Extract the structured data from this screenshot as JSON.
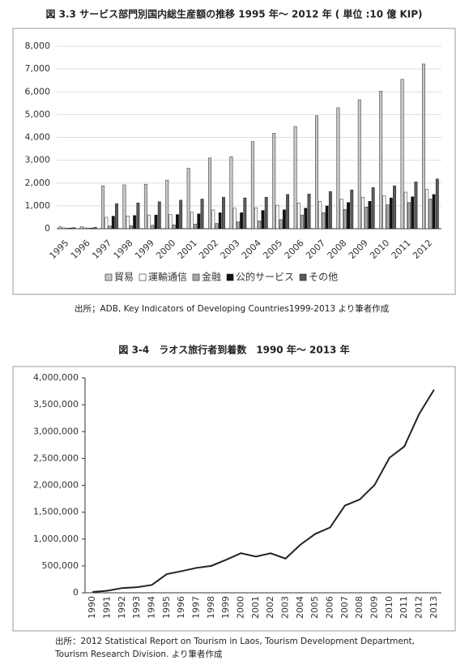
{
  "chart_data": [
    {
      "type": "bar",
      "title": "図 3.3 サービス部門別国内総生産額の推移 1995 年～ 2012 年 ( 単位 :10 億 KIP)",
      "categories": [
        "1995",
        "1996",
        "1997",
        "1998",
        "1999",
        "2000",
        "2001",
        "2002",
        "2003",
        "2004",
        "2005",
        "2006",
        "2007",
        "2008",
        "2009",
        "2010",
        "2011",
        "2012"
      ],
      "series": [
        {
          "name": "貿易",
          "color": "#c8c8c8",
          "values": [
            80,
            80,
            1880,
            1920,
            1950,
            2130,
            2650,
            3100,
            3150,
            3820,
            4180,
            4480,
            4950,
            5300,
            5650,
            6030,
            6550,
            7220
          ]
        },
        {
          "name": "運輸通信",
          "color": "#ffffff",
          "values": [
            40,
            40,
            500,
            560,
            600,
            620,
            720,
            820,
            900,
            920,
            1030,
            1130,
            1200,
            1300,
            1380,
            1450,
            1600,
            1720
          ]
        },
        {
          "name": "金融",
          "color": "#a8a8a8",
          "values": [
            20,
            20,
            120,
            130,
            150,
            170,
            200,
            230,
            300,
            340,
            400,
            600,
            700,
            850,
            950,
            1050,
            1150,
            1300
          ]
        },
        {
          "name": "公的サービス",
          "color": "#111111",
          "values": [
            30,
            30,
            550,
            580,
            600,
            620,
            650,
            700,
            700,
            800,
            830,
            900,
            1000,
            1150,
            1200,
            1350,
            1400,
            1500
          ]
        },
        {
          "name": "その他",
          "color": "#5a5a5a",
          "values": [
            50,
            60,
            1100,
            1130,
            1180,
            1250,
            1300,
            1380,
            1350,
            1380,
            1500,
            1520,
            1630,
            1700,
            1800,
            1880,
            2050,
            2180
          ]
        }
      ],
      "ylim": [
        0,
        8000
      ],
      "yticks": [
        0,
        {
          "value": 1000,
          "label": "1,000"
        },
        {
          "value": 2000,
          "label": "2,000"
        },
        {
          "value": 3000,
          "label": "3,000"
        },
        {
          "value": 4000,
          "label": "4,000"
        },
        {
          "value": 5000,
          "label": "5,000"
        },
        {
          "value": 6000,
          "label": "6,000"
        },
        {
          "value": 7000,
          "label": "7,000"
        },
        {
          "value": 8000,
          "label": "8,000"
        }
      ],
      "grid": true,
      "legend": "bottom",
      "source": [
        "出所；ADB, Key Indicators of Developing Countries1999-2013 より筆者作成"
      ]
    },
    {
      "type": "line",
      "title": "図 3-4　ラオス旅行者到着数　1990 年～ 2013 年",
      "categories": [
        "1990",
        "1991",
        "1992",
        "1993",
        "1994",
        "1995",
        "1996",
        "1997",
        "1998",
        "1999",
        "2000",
        "2001",
        "2002",
        "2003",
        "2004",
        "2005",
        "2006",
        "2007",
        "2008",
        "2009",
        "2010",
        "2011",
        "2012",
        "2013"
      ],
      "values": [
        14400,
        37600,
        87600,
        102900,
        146200,
        346500,
        403000,
        463200,
        500200,
        614300,
        737200,
        673800,
        735700,
        636400,
        894800,
        1095300,
        1215100,
        1623900,
        1736800,
        2008400,
        2513000,
        2723600,
        3330000,
        3779500
      ],
      "color": "#222222",
      "ylim": [
        0,
        4000000
      ],
      "yticks": [
        0,
        {
          "value": 500000,
          "label": "500,000"
        },
        {
          "value": 1000000,
          "label": "1,000,000"
        },
        {
          "value": 1500000,
          "label": "1,500,000"
        },
        {
          "value": 2000000,
          "label": "2,000,000"
        },
        {
          "value": 2500000,
          "label": "2,500,000"
        },
        {
          "value": 3000000,
          "label": "3,000,000"
        },
        {
          "value": 3500000,
          "label": "3,500,000"
        },
        {
          "value": 4000000,
          "label": "4,000,000"
        }
      ],
      "grid": false,
      "source": [
        "出所：2012 Statistical Report on Tourism in Laos, Tourism Development Department,",
        "Tourism Research Division. より筆者作成"
      ]
    }
  ]
}
